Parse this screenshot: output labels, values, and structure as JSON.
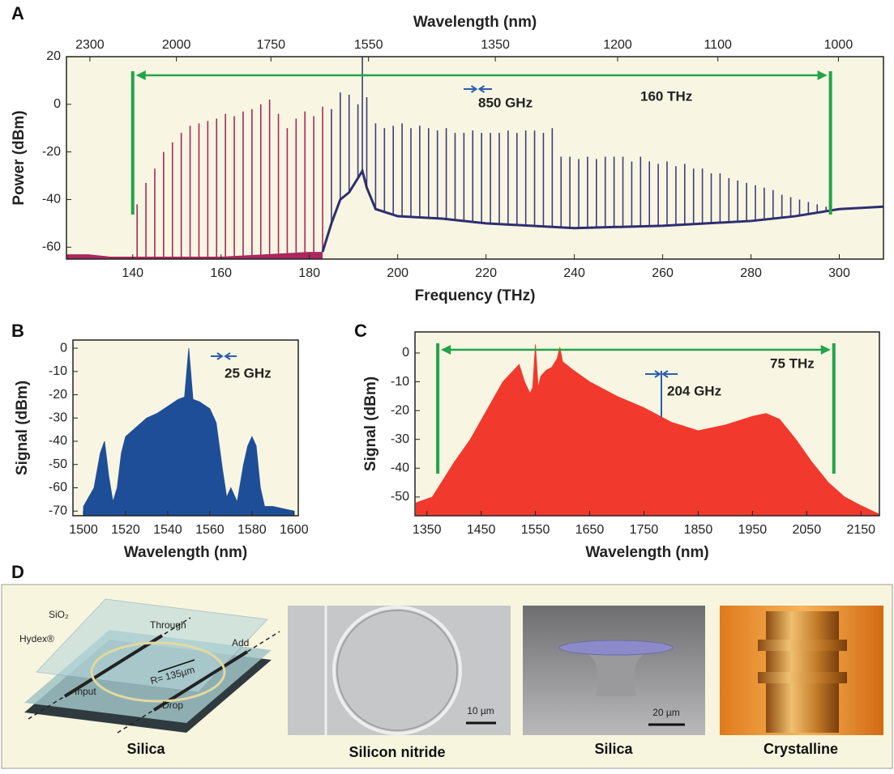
{
  "chart_data": [
    {
      "type": "comb",
      "panel_label": "A",
      "xlabel": "Frequency (THz)",
      "ylabel": "Power (dBm)",
      "x2label": "Wavelength (nm)",
      "background": "#f8f6e2",
      "xlim": [
        125,
        310
      ],
      "ylim": [
        -65,
        20
      ],
      "xticks": [
        140,
        160,
        180,
        200,
        220,
        240,
        260,
        280,
        300
      ],
      "yticks": [
        -60,
        -40,
        -20,
        0,
        20
      ],
      "x2ticks": [
        {
          "value": 130.3,
          "label": "2300"
        },
        {
          "value": 149.9,
          "label": "2000"
        },
        {
          "value": 171.3,
          "label": "1750"
        },
        {
          "value": 193.4,
          "label": "1550"
        },
        {
          "value": 222.1,
          "label": "1350"
        },
        {
          "value": 249.8,
          "label": "1200"
        },
        {
          "value": 272.5,
          "label": "1100"
        },
        {
          "value": 299.8,
          "label": "1000"
        }
      ],
      "series": [
        {
          "color": "#a8285c",
          "x": [
            141,
            143,
            145,
            147,
            149,
            151,
            153,
            155,
            157,
            159,
            161,
            163,
            165,
            167,
            169,
            171,
            173,
            175,
            177,
            179,
            181,
            183
          ],
          "values": [
            -42,
            -33,
            -27,
            -20,
            -16,
            -12,
            -9,
            -8,
            -7,
            -6,
            -4,
            -5,
            -3,
            -2,
            0,
            2,
            -4,
            -10,
            -6,
            -3,
            -5,
            -1
          ]
        },
        {
          "color": "#3d3d7c",
          "x": [
            185,
            187,
            189,
            191,
            192,
            193,
            195,
            197,
            199,
            201,
            203,
            205,
            207,
            209,
            211,
            213,
            215,
            217,
            219,
            221,
            223,
            225,
            227,
            229,
            231,
            233,
            235,
            237,
            239,
            241,
            243,
            245,
            247,
            249,
            251,
            253,
            255,
            257,
            259,
            261,
            263,
            265,
            267,
            269,
            271,
            273,
            275,
            277,
            279,
            281,
            283,
            285,
            287,
            289,
            291,
            293,
            295,
            297,
            299
          ],
          "values": [
            -2,
            5,
            4,
            0,
            20,
            3,
            -8,
            -10,
            -9,
            -8,
            -10,
            -9,
            -10,
            -11,
            -10,
            -12,
            -12,
            -11,
            -12,
            -12,
            -12,
            -11,
            -12,
            -11,
            -11,
            -12,
            -10,
            -22,
            -22,
            -23,
            -22,
            -23,
            -22,
            -22,
            -22,
            -24,
            -22,
            -24,
            -25,
            -24,
            -26,
            -25,
            -27,
            -27,
            -29,
            -29,
            -31,
            -32,
            -33,
            -34,
            -35,
            -36,
            -38,
            -39,
            -40,
            -41,
            -42,
            -43,
            -44
          ]
        }
      ],
      "floor": [
        {
          "color": "#a8285c",
          "filled": true,
          "x": [
            125,
            130,
            135,
            140,
            150,
            160,
            170,
            180,
            183
          ],
          "values": [
            -63,
            -63,
            -64,
            -64,
            -64,
            -64,
            -63,
            -62,
            -62
          ]
        },
        {
          "color": "#2e2e70",
          "filled": false,
          "x": [
            183,
            185,
            187,
            189,
            191,
            192,
            193,
            195,
            200,
            210,
            220,
            240,
            260,
            280,
            290,
            300,
            310
          ],
          "values": [
            -62,
            -50,
            -40,
            -37,
            -31,
            -28,
            -35,
            -44,
            -47,
            -48,
            -50,
            -52,
            -51,
            -49,
            -47,
            -44,
            -43
          ]
        }
      ],
      "span": {
        "x": [
          140,
          298
        ],
        "color": "#22a44a"
      },
      "annotations": [
        {
          "text": "850 GHz",
          "color": "#2b5fb0"
        },
        {
          "text": "160 THz",
          "color": "#22a44a"
        }
      ]
    },
    {
      "type": "area",
      "panel_label": "B",
      "xlabel": "Wavelength (nm)",
      "ylabel": "Signal (dBm)",
      "background": "#f8f6e2",
      "xlim": [
        1495,
        1602
      ],
      "ylim": [
        -72,
        3.5
      ],
      "xticks": [
        1500,
        1520,
        1540,
        1560,
        1580,
        1600
      ],
      "yticks": [
        0,
        -10,
        -20,
        -30,
        -40,
        -50,
        -60,
        -70
      ],
      "series": [
        {
          "color": "#1f4e98",
          "x": [
            1500,
            1505,
            1508,
            1510,
            1512,
            1514,
            1516,
            1518,
            1520,
            1525,
            1530,
            1535,
            1540,
            1545,
            1548,
            1550,
            1552,
            1555,
            1560,
            1563,
            1566,
            1568,
            1570,
            1573,
            1576,
            1578,
            1580,
            1582,
            1584,
            1586,
            1590,
            1595,
            1600
          ],
          "values": [
            -68,
            -60,
            -45,
            -40,
            -55,
            -66,
            -60,
            -45,
            -38,
            -34,
            -30,
            -28,
            -25,
            -22,
            -21,
            0,
            -22,
            -23,
            -26,
            -32,
            -52,
            -64,
            -60,
            -66,
            -50,
            -42,
            -38,
            -42,
            -60,
            -68,
            -68,
            -69,
            -70
          ]
        }
      ],
      "annotations": [
        {
          "text": "25 GHz",
          "color": "#2b5fb0"
        }
      ]
    },
    {
      "type": "area",
      "panel_label": "C",
      "xlabel": "Wavelength (nm)",
      "ylabel": "Signal (dBm)",
      "background": "#f8f6e2",
      "xlim": [
        1328,
        2184
      ],
      "ylim": [
        -56.5,
        7.3
      ],
      "xticks": [
        1350,
        1450,
        1550,
        1650,
        1750,
        1850,
        1950,
        2050,
        2150
      ],
      "yticks": [
        0,
        -10,
        -20,
        -30,
        -40,
        -50
      ],
      "series": [
        {
          "color": "#f2392d",
          "x": [
            1330,
            1360,
            1380,
            1400,
            1430,
            1460,
            1490,
            1510,
            1520,
            1530,
            1540,
            1545,
            1550,
            1555,
            1560,
            1570,
            1580,
            1590,
            1595,
            1600,
            1620,
            1650,
            1700,
            1750,
            1800,
            1850,
            1900,
            1950,
            1975,
            2000,
            2030,
            2060,
            2090,
            2120,
            2150,
            2184
          ],
          "values": [
            -52,
            -50,
            -44,
            -38,
            -30,
            -20,
            -10,
            -6,
            -4,
            -10,
            -14,
            -12,
            3,
            -12,
            -8,
            -6,
            -5,
            -2,
            2,
            -3,
            -6,
            -10,
            -15,
            -19,
            -24,
            -27,
            -25,
            -22,
            -21,
            -23,
            -30,
            -38,
            -45,
            -50,
            -53,
            -56
          ]
        }
      ],
      "span": {
        "x": [
          1370,
          2100
        ],
        "color": "#22a44a"
      },
      "annotations": [
        {
          "text": "75 THz",
          "color": "#22a44a"
        },
        {
          "text": "204 GHz",
          "color": "#2b5fb0"
        }
      ]
    }
  ],
  "panel_d": {
    "label": "D",
    "captions": [
      "Silica",
      "Silicon nitride",
      "Silica",
      "Crystalline"
    ],
    "diagram": {
      "sio2": "SiO₂",
      "hydex": "Hydex®",
      "through": "Through",
      "add": "Add",
      "radius": "R= 135µm",
      "input": "Input",
      "drop": "Drop"
    },
    "scale_bars": [
      "10 µm",
      "20 µm"
    ]
  }
}
